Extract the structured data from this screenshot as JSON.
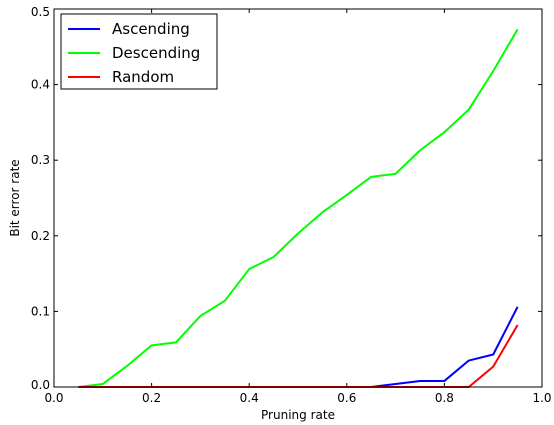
{
  "chart_data": {
    "type": "line",
    "xlabel": "Pruning rate",
    "ylabel": "Bit error rate",
    "xlim": [
      0.0,
      1.0
    ],
    "ylim": [
      0.0,
      0.5
    ],
    "xticks": [
      "0.0",
      "0.2",
      "0.4",
      "0.6",
      "0.8",
      "1.0"
    ],
    "yticks": [
      "0.0",
      "0.1",
      "0.2",
      "0.3",
      "0.4",
      "0.5"
    ],
    "grid": false,
    "legend_position": "top-left",
    "x": [
      0.05,
      0.1,
      0.15,
      0.2,
      0.25,
      0.3,
      0.35,
      0.4,
      0.45,
      0.5,
      0.55,
      0.6,
      0.65,
      0.7,
      0.75,
      0.8,
      0.85,
      0.9,
      0.95
    ],
    "series": [
      {
        "name": "Ascending",
        "color": "#0000ff",
        "values": [
          0,
          0,
          0,
          0,
          0,
          0,
          0,
          0,
          0,
          0,
          0,
          0,
          0,
          0.004,
          0.008,
          0.008,
          0.035,
          0.043,
          0.106
        ]
      },
      {
        "name": "Descending",
        "color": "#00ff00",
        "values": [
          0,
          0.004,
          0.028,
          0.055,
          0.059,
          0.094,
          0.114,
          0.156,
          0.172,
          0.203,
          0.231,
          0.254,
          0.278,
          0.282,
          0.313,
          0.337,
          0.367,
          0.418,
          0.473
        ]
      },
      {
        "name": "Random",
        "color": "#ff0000",
        "values": [
          0,
          0,
          0,
          0,
          0,
          0,
          0,
          0,
          0,
          0,
          0,
          0,
          0,
          0,
          0,
          0,
          0,
          0.027,
          0.082
        ]
      }
    ]
  }
}
